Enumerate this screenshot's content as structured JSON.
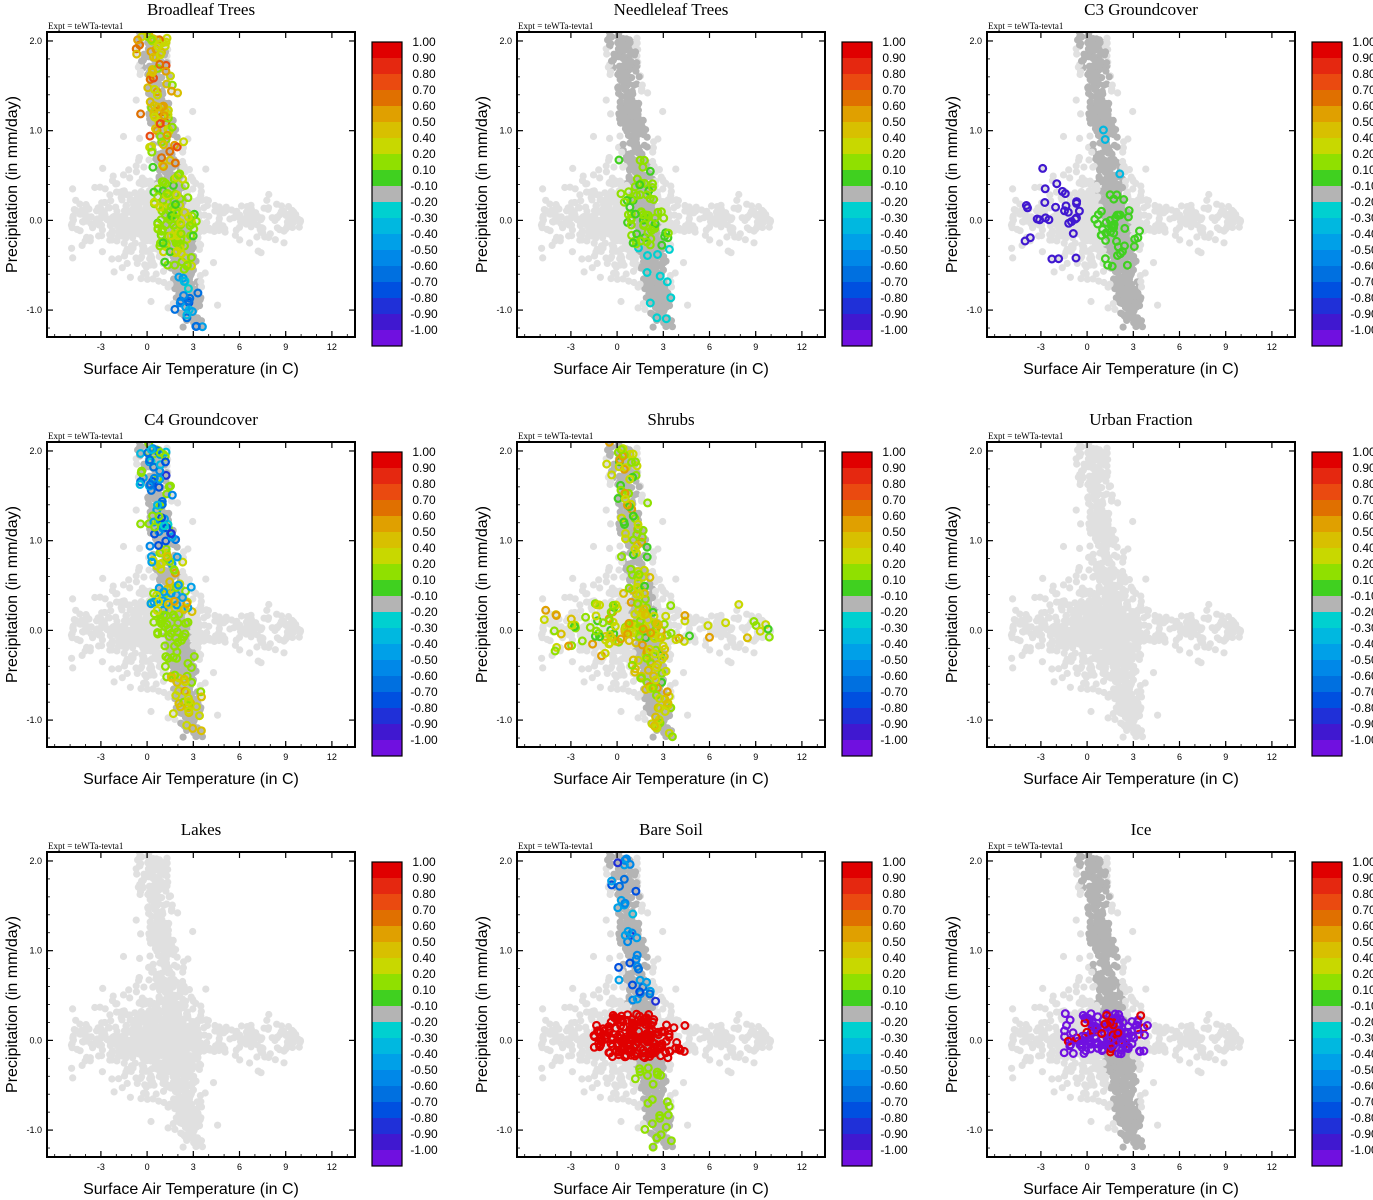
{
  "expt_label": "Expt = teWTa-tevta1",
  "xlabel": "Surface Air Temperature (in C)",
  "ylabel": "Precipitation (in mm/day)",
  "xlim": [
    -6.5,
    13.5
  ],
  "ylim": [
    -1.3,
    2.1
  ],
  "xticks": [
    "-3",
    "0",
    "3",
    "6",
    "9",
    "12"
  ],
  "xtick_values": [
    -3,
    0,
    3,
    6,
    9,
    12
  ],
  "yticks": [
    "-1.0",
    "0.0",
    "1.0",
    "2.0"
  ],
  "ytick_values": [
    -1,
    0,
    1,
    2
  ],
  "colorbar": {
    "labels": [
      "1.00",
      "0.90",
      "0.80",
      "0.70",
      "0.60",
      "0.50",
      "0.40",
      "0.20",
      "0.10",
      "-0.10",
      "-0.20",
      "-0.30",
      "-0.40",
      "-0.50",
      "-0.60",
      "-0.70",
      "-0.80",
      "-0.90",
      "-1.00"
    ],
    "colors": [
      "#e00000",
      "#e52810",
      "#ea4a10",
      "#e07000",
      "#e0a000",
      "#d8c000",
      "#c8d800",
      "#90e000",
      "#40d020",
      "#b4b4b4",
      "#00d0d0",
      "#00b8e0",
      "#00a0e8",
      "#0088e8",
      "#0070e0",
      "#0050e0",
      "#2030d8",
      "#4018d0",
      "#7010e0"
    ]
  },
  "chart_data": [
    {
      "type": "scatter",
      "title": "Broadleaf Trees",
      "profile": "broadleaf"
    },
    {
      "type": "scatter",
      "title": "Needleleaf Trees",
      "profile": "needleleaf"
    },
    {
      "type": "scatter",
      "title": "C3 Groundcover",
      "profile": "c3"
    },
    {
      "type": "scatter",
      "title": "C4 Groundcover",
      "profile": "c4"
    },
    {
      "type": "scatter",
      "title": "Shrubs",
      "profile": "shrubs"
    },
    {
      "type": "scatter",
      "title": "Urban Fraction",
      "profile": "none"
    },
    {
      "type": "scatter",
      "title": "Lakes",
      "profile": "none"
    },
    {
      "type": "scatter",
      "title": "Bare Soil",
      "profile": "baresoil"
    },
    {
      "type": "scatter",
      "title": "Ice",
      "profile": "ice"
    }
  ]
}
